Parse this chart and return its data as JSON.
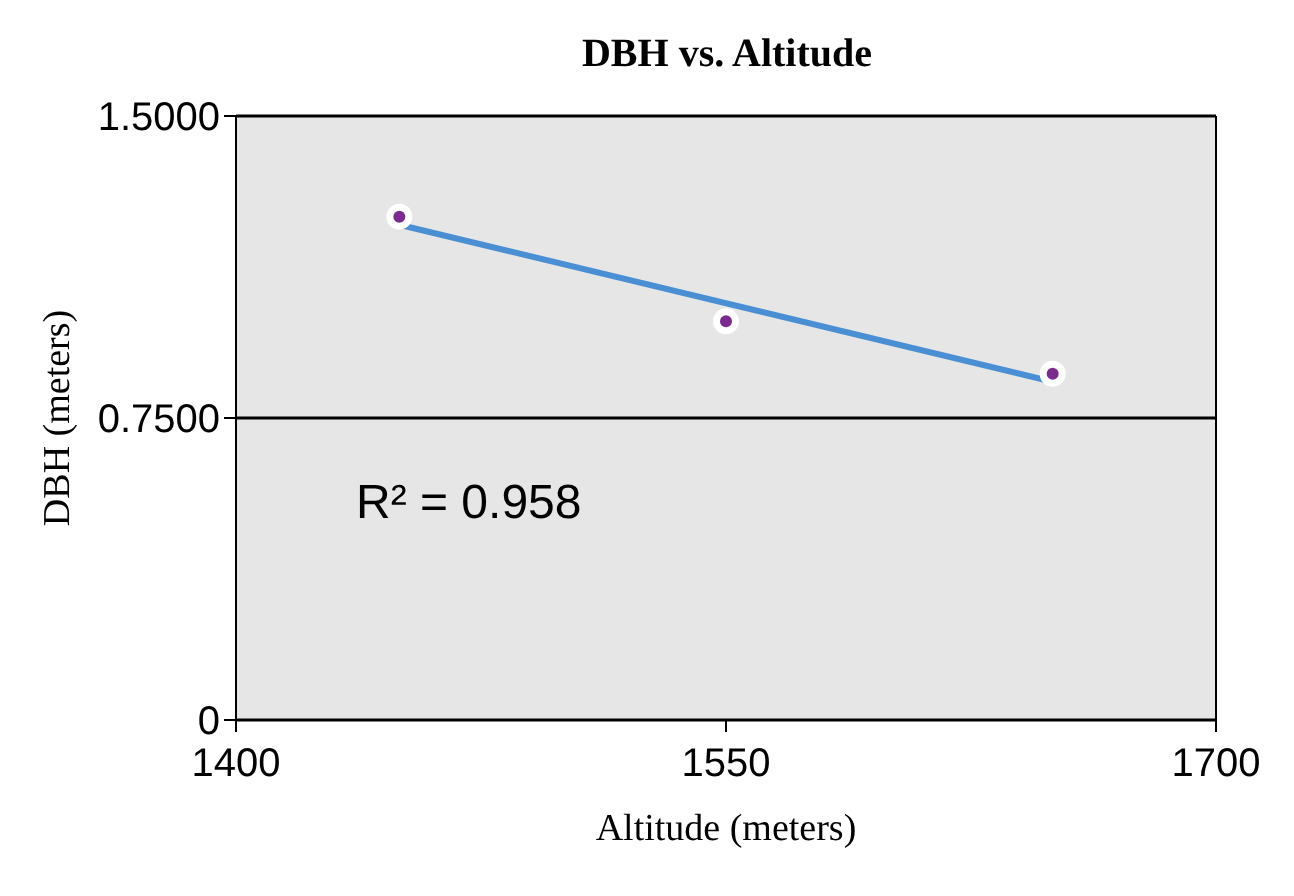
{
  "chart_data": {
    "type": "scatter",
    "title": "DBH vs. Altitude",
    "xlabel": "Altitude (meters)",
    "ylabel": "DBH (meters)",
    "series": [
      {
        "color": "#7b2a8e",
        "marker": "circle",
        "x": [
          1450,
          1550,
          1650
        ],
        "values": [
          1.25,
          0.99,
          0.86
        ]
      },
      {
        "type": "line",
        "color": "#4a8fd4",
        "x": [
          1450,
          1650
        ],
        "values": [
          1.23,
          0.84
        ]
      }
    ],
    "xlim": [
      1400,
      1700
    ],
    "xticks": [
      1400,
      1550,
      1700
    ],
    "ylim": [
      0,
      1.5
    ],
    "yticks": [
      0,
      {
        "value": 0.75,
        "label": "0.7500"
      },
      {
        "value": 1.5,
        "label": "1.5000"
      }
    ],
    "grid": "y",
    "annotations": [
      "R² = 0.958"
    ]
  }
}
